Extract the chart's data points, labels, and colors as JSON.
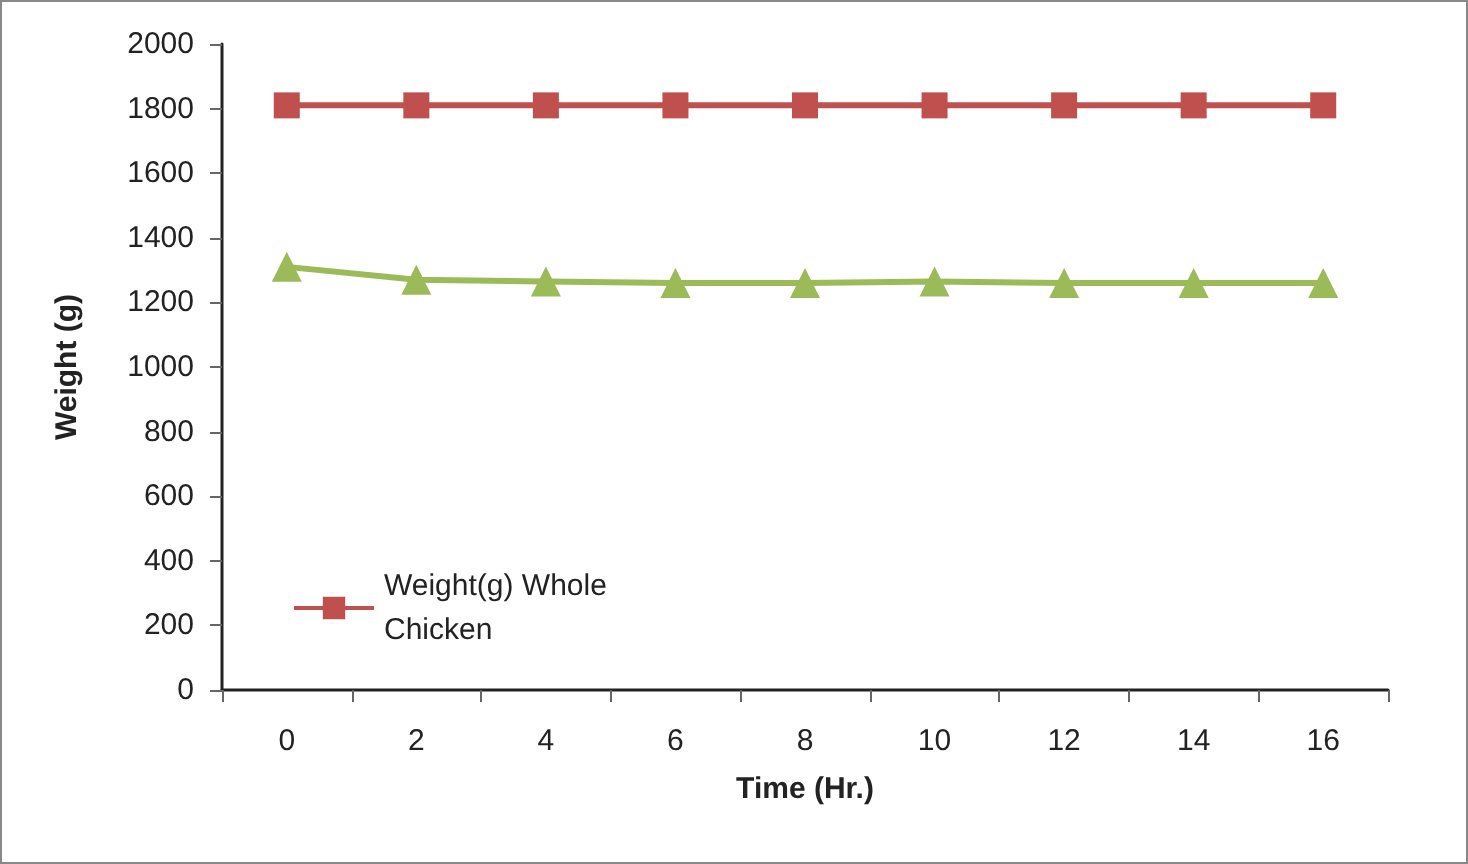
{
  "chart_data": {
    "type": "line",
    "xlabel": "Time (Hr.)",
    "ylabel": "Weight (g)",
    "categories": [
      "0",
      "2",
      "4",
      "6",
      "8",
      "10",
      "12",
      "14",
      "16"
    ],
    "series": [
      {
        "name": "Weight(g) Whole Chicken",
        "color": "#c0504d",
        "marker": "square",
        "values": [
          1810,
          1810,
          1810,
          1810,
          1810,
          1810,
          1810,
          1810,
          1810
        ]
      },
      {
        "color": "#9bbb59",
        "marker": "triangle",
        "values": [
          1310,
          1270,
          1265,
          1260,
          1260,
          1265,
          1260,
          1260,
          1260
        ]
      }
    ],
    "ylim": [
      0,
      2000
    ],
    "yticks": [
      0,
      200,
      400,
      600,
      800,
      1000,
      1200,
      1400,
      1600,
      1800,
      2000
    ],
    "grid": false,
    "legend": "bottom left",
    "line_style": "solid"
  }
}
